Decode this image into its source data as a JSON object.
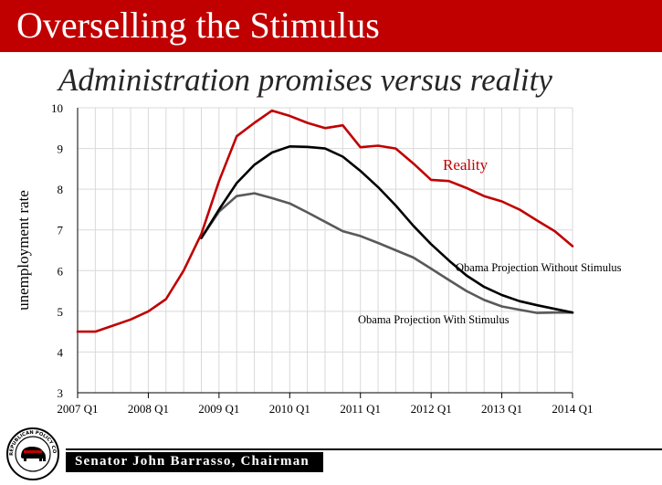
{
  "header": {
    "title": "Overselling the Stimulus",
    "subtitle": "Administration promises versus reality"
  },
  "colors": {
    "title_bar": "#c00000",
    "reality": "#c00000",
    "without_stimulus": "#000000",
    "with_stimulus": "#595959",
    "grid": "#d9d9d9"
  },
  "chart_data": {
    "type": "line",
    "title": "",
    "xlabel": "",
    "ylabel": "unemployment rate",
    "ylim": [
      3,
      10
    ],
    "xlim": [
      2007.0,
      2014.0
    ],
    "x_ticks": [
      {
        "value": 2007.0,
        "label": "2007 Q1"
      },
      {
        "value": 2008.0,
        "label": "2008 Q1"
      },
      {
        "value": 2009.0,
        "label": "2009 Q1"
      },
      {
        "value": 2010.0,
        "label": "2010 Q1"
      },
      {
        "value": 2011.0,
        "label": "2011 Q1"
      },
      {
        "value": 2012.0,
        "label": "2012 Q1"
      },
      {
        "value": 2013.0,
        "label": "2013 Q1"
      },
      {
        "value": 2014.0,
        "label": "2014 Q1"
      }
    ],
    "y_ticks": [
      3,
      4,
      5,
      6,
      7,
      8,
      9,
      10
    ],
    "grid": true,
    "series": [
      {
        "name": "Reality",
        "color": "#c00000",
        "x": [
          2007.0,
          2007.25,
          2007.5,
          2007.75,
          2008.0,
          2008.25,
          2008.5,
          2008.75,
          2009.0,
          2009.25,
          2009.5,
          2009.75,
          2010.0,
          2010.25,
          2010.5,
          2010.75,
          2011.0,
          2011.25,
          2011.5,
          2011.75,
          2012.0,
          2012.25,
          2012.5,
          2012.75,
          2013.0,
          2013.25,
          2013.5,
          2013.75,
          2014.0
        ],
        "values": [
          4.5,
          4.5,
          4.65,
          4.8,
          5.0,
          5.3,
          6.0,
          6.9,
          8.2,
          9.3,
          9.63,
          9.93,
          9.8,
          9.63,
          9.5,
          9.57,
          9.03,
          9.07,
          9.0,
          8.63,
          8.23,
          8.2,
          8.03,
          7.83,
          7.7,
          7.5,
          7.23,
          6.97,
          6.6
        ]
      },
      {
        "name": "Obama Projection Without Stimulus",
        "color": "#000000",
        "x": [
          2008.75,
          2009.0,
          2009.25,
          2009.5,
          2009.75,
          2010.0,
          2010.25,
          2010.5,
          2010.75,
          2011.0,
          2011.25,
          2011.5,
          2011.75,
          2012.0,
          2012.25,
          2012.5,
          2012.75,
          2013.0,
          2013.25,
          2013.5,
          2013.75,
          2014.0
        ],
        "values": [
          6.8,
          7.5,
          8.15,
          8.6,
          8.9,
          9.05,
          9.04,
          9.0,
          8.8,
          8.45,
          8.05,
          7.6,
          7.1,
          6.65,
          6.25,
          5.88,
          5.6,
          5.4,
          5.25,
          5.15,
          5.06,
          4.97
        ]
      },
      {
        "name": "Obama Projection With Stimulus",
        "color": "#595959",
        "x": [
          2008.75,
          2009.0,
          2009.25,
          2009.5,
          2009.75,
          2010.0,
          2010.25,
          2010.5,
          2010.75,
          2011.0,
          2011.25,
          2011.5,
          2011.75,
          2012.0,
          2012.25,
          2012.5,
          2012.75,
          2013.0,
          2013.25,
          2013.5,
          2013.75,
          2014.0
        ],
        "values": [
          6.8,
          7.45,
          7.83,
          7.9,
          7.78,
          7.65,
          7.43,
          7.2,
          6.97,
          6.85,
          6.68,
          6.5,
          6.32,
          6.05,
          5.77,
          5.5,
          5.28,
          5.12,
          5.04,
          4.96,
          4.97,
          4.97
        ]
      }
    ],
    "annotations": [
      {
        "text": "Reality",
        "series": "Reality"
      },
      {
        "text": "Obama Projection Without Stimulus",
        "series": "Obama Projection Without Stimulus"
      },
      {
        "text": "Obama Projection With Stimulus",
        "series": "Obama Projection With Stimulus"
      }
    ]
  },
  "footer": {
    "text": "Senator John Barrasso, Chairman",
    "seal_text": "SENATE REPUBLICAN POLICY COMMITTEE"
  }
}
